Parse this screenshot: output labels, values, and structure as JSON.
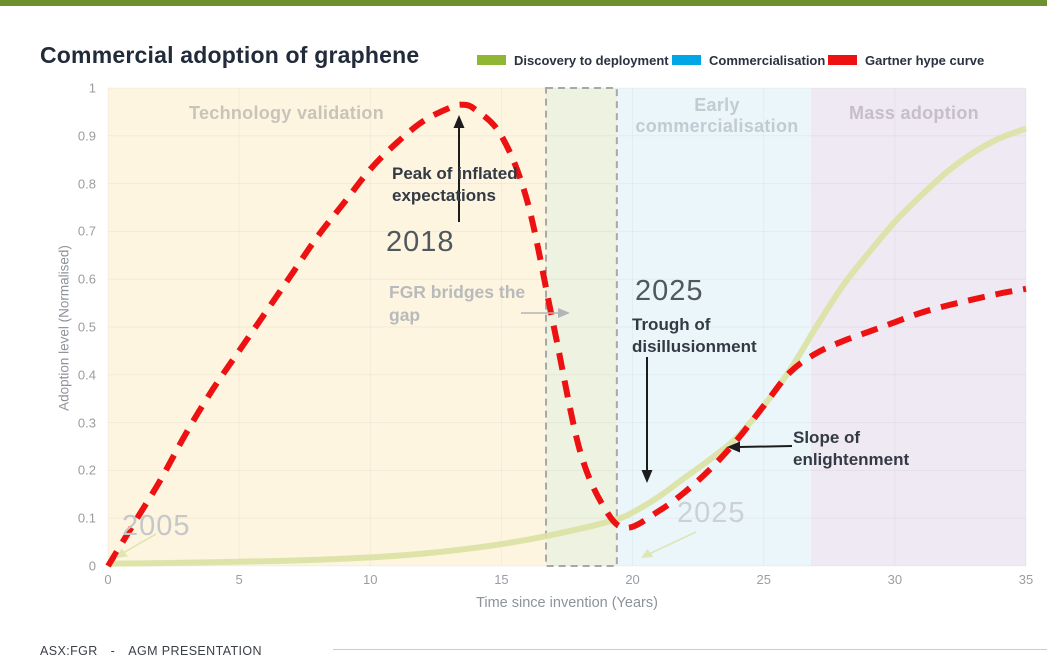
{
  "accent_bar_color": "#6e9130",
  "header": {
    "title": "Commercial adoption of graphene"
  },
  "legend": [
    {
      "label": "Discovery to deployment",
      "color": "#8fb733"
    },
    {
      "label": "Commercialisation",
      "color": "#00a6e6"
    },
    {
      "label": "Gartner hype curve",
      "color": "#ee1111"
    }
  ],
  "chart_data": {
    "type": "line",
    "title": "Commercial adoption of graphene",
    "xlabel": "Time since invention (Years)",
    "ylabel": "Adoption level (Normalised)",
    "xlim": [
      0,
      35
    ],
    "ylim": [
      0,
      1
    ],
    "x_ticks": [
      0,
      5,
      10,
      15,
      20,
      25,
      30,
      35
    ],
    "y_ticks": [
      0,
      0.1,
      0.2,
      0.3,
      0.4,
      0.5,
      0.6,
      0.7,
      0.8,
      0.9,
      1
    ],
    "grid": true,
    "legend_position": "top-right",
    "zones": [
      {
        "label": "Technology validation",
        "x0": 0,
        "x1": 16.7,
        "color": "#fdf5e0"
      },
      {
        "x0": 16.7,
        "x1": 19.4,
        "color": "#edf3e0",
        "dashed_outline": true,
        "outline_color": "#a8a8a8"
      },
      {
        "label": "Early commercialisation",
        "x0": 19.4,
        "x1": 26.8,
        "color": "#ebf6fb"
      },
      {
        "label": "Mass adoption",
        "x0": 26.8,
        "x1": 35,
        "color": "#efe9f3"
      }
    ],
    "series": [
      {
        "name": "Discovery to deployment",
        "color": "#dbe2a4",
        "style": "solid",
        "width": 6,
        "points": [
          [
            0,
            0.005
          ],
          [
            2,
            0.006
          ],
          [
            4,
            0.008
          ],
          [
            6,
            0.01
          ],
          [
            8,
            0.013
          ],
          [
            10,
            0.018
          ],
          [
            12,
            0.026
          ],
          [
            14,
            0.038
          ],
          [
            16,
            0.055
          ],
          [
            18,
            0.078
          ],
          [
            19.4,
            0.098
          ],
          [
            20,
            0.112
          ],
          [
            21,
            0.145
          ],
          [
            22,
            0.185
          ],
          [
            23,
            0.225
          ],
          [
            24,
            0.27
          ],
          [
            25,
            0.335
          ],
          [
            26,
            0.41
          ],
          [
            27,
            0.5
          ],
          [
            28,
            0.585
          ],
          [
            29,
            0.655
          ],
          [
            30,
            0.72
          ],
          [
            31,
            0.775
          ],
          [
            32,
            0.825
          ],
          [
            33,
            0.865
          ],
          [
            34,
            0.895
          ],
          [
            35,
            0.915
          ]
        ]
      },
      {
        "name": "Gartner hype curve",
        "color": "#ee1111",
        "style": "dashed",
        "width": 6,
        "points": [
          [
            0,
            0
          ],
          [
            1,
            0.09
          ],
          [
            2,
            0.18
          ],
          [
            3,
            0.28
          ],
          [
            4,
            0.37
          ],
          [
            5,
            0.45
          ],
          [
            6,
            0.53
          ],
          [
            7,
            0.61
          ],
          [
            8,
            0.69
          ],
          [
            9,
            0.76
          ],
          [
            10,
            0.83
          ],
          [
            11,
            0.885
          ],
          [
            12,
            0.93
          ],
          [
            13,
            0.958
          ],
          [
            13.5,
            0.965
          ],
          [
            14,
            0.955
          ],
          [
            15,
            0.9
          ],
          [
            16,
            0.76
          ],
          [
            17,
            0.5
          ],
          [
            18,
            0.24
          ],
          [
            19,
            0.115
          ],
          [
            19.8,
            0.08
          ],
          [
            21,
            0.115
          ],
          [
            22,
            0.155
          ],
          [
            23,
            0.205
          ],
          [
            24,
            0.265
          ],
          [
            25,
            0.335
          ],
          [
            26,
            0.405
          ],
          [
            27,
            0.445
          ],
          [
            28,
            0.47
          ],
          [
            29,
            0.49
          ],
          [
            30,
            0.51
          ],
          [
            31,
            0.53
          ],
          [
            32,
            0.545
          ],
          [
            33,
            0.558
          ],
          [
            34,
            0.57
          ],
          [
            35,
            0.58
          ]
        ]
      }
    ]
  },
  "annotations": {
    "peak": {
      "label": "Peak of inflated expectations",
      "year": "2018"
    },
    "fgr_gap": {
      "label": "FGR bridges the gap"
    },
    "trough": {
      "label": "Trough of disillusionment",
      "year": "2025"
    },
    "slope": {
      "label": "Slope of enlightenment"
    },
    "invention_year": "2005",
    "takeoff_year": "2025"
  },
  "footer": {
    "ticker": "ASX:FGR",
    "separator": "-",
    "label": "AGM PRESENTATION"
  }
}
